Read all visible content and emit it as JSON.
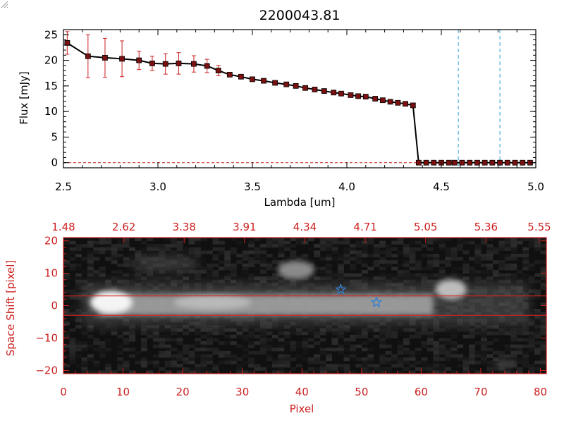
{
  "colors": {
    "axis": "#000000",
    "data_line": "#000000",
    "marker_fill": "#7a1010",
    "error_bar": "#cc1f1f",
    "dashed_vline": "#2a9fd6",
    "zero_line": "#cc1f1f",
    "image_axis": "#cc1f1f",
    "extraction_band": "#e02020",
    "star": "#2f7fd8"
  },
  "chart_data": [
    {
      "type": "line",
      "title": "2200043.81",
      "xlabel": "Lambda [um]",
      "ylabel": "Flux [mJy]",
      "xlim": [
        2.5,
        5.0
      ],
      "ylim": [
        -1,
        26
      ],
      "xticks": [
        "2.5",
        "3.0",
        "3.5",
        "4.0",
        "4.5",
        "5.0"
      ],
      "yticks": [
        "0",
        "5",
        "10",
        "15",
        "20",
        "25"
      ],
      "grid": false,
      "vlines": [
        4.59,
        4.81
      ],
      "series": [
        {
          "x": [
            2.52,
            2.63,
            2.72,
            2.81,
            2.9,
            2.97,
            3.04,
            3.11,
            3.19,
            3.26,
            3.32,
            3.38,
            3.44,
            3.5,
            3.56,
            3.62,
            3.68,
            3.73,
            3.78,
            3.83,
            3.88,
            3.93,
            3.97,
            4.02,
            4.06,
            4.1,
            4.15,
            4.19,
            4.23,
            4.27,
            4.31,
            4.35,
            4.38,
            4.42,
            4.46,
            4.5,
            4.54,
            4.57,
            4.61,
            4.65,
            4.69,
            4.73,
            4.77,
            4.81,
            4.85,
            4.89,
            4.93,
            4.97
          ],
          "y": [
            23.4,
            20.8,
            20.5,
            20.3,
            20.0,
            19.4,
            19.3,
            19.4,
            19.3,
            18.9,
            18.0,
            17.2,
            16.8,
            16.3,
            16.0,
            15.6,
            15.3,
            15.0,
            14.6,
            14.3,
            14.0,
            13.7,
            13.5,
            13.2,
            13.0,
            12.9,
            12.5,
            12.2,
            11.9,
            11.7,
            11.5,
            11.2,
            0,
            0,
            0,
            0,
            0,
            0,
            0,
            0,
            0,
            0,
            0,
            0,
            0,
            0,
            0,
            0
          ],
          "yerr": [
            2.2,
            4.2,
            3.8,
            3.5,
            1.8,
            1.4,
            2.0,
            2.1,
            1.6,
            1.3,
            1.0,
            0,
            0,
            0,
            0,
            0,
            0,
            0,
            0,
            0,
            0,
            0,
            0,
            0,
            0,
            0,
            0,
            0,
            0,
            0,
            0,
            0,
            0,
            0,
            0,
            0,
            0,
            0,
            0,
            0,
            0,
            0,
            0,
            0,
            0,
            0,
            0,
            0
          ]
        }
      ]
    },
    {
      "type": "heatmap",
      "xlabel": "Pixel",
      "ylabel": "Space Shift [pixel]",
      "xlim": [
        0,
        81
      ],
      "ylim": [
        -21,
        21
      ],
      "xticks": [
        "0",
        "10",
        "20",
        "30",
        "40",
        "50",
        "60",
        "70",
        "80"
      ],
      "yticks": [
        "−20",
        "−10",
        "0",
        "10",
        "20"
      ],
      "top_ticks": [
        "1.48",
        "2.62",
        "3.38",
        "3.91",
        "4.34",
        "4.71",
        "5.05",
        "5.36",
        "5.55"
      ],
      "extraction_band": [
        -3,
        3
      ],
      "sources": [
        {
          "x": 46.5,
          "y": 5
        },
        {
          "x": 52.5,
          "y": 1
        }
      ]
    }
  ]
}
